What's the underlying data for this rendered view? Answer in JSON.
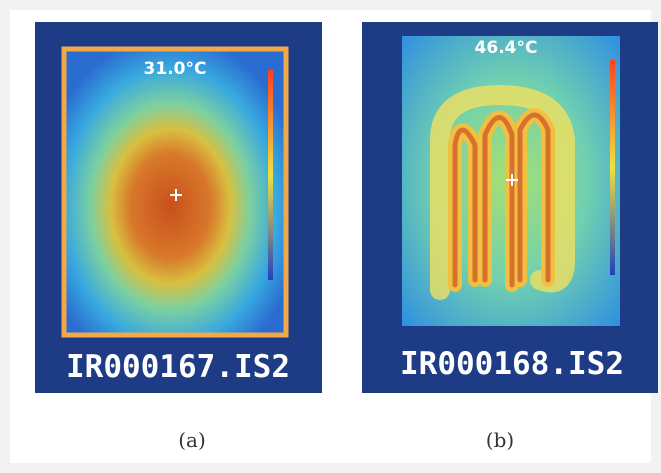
{
  "panels": [
    {
      "temperature": "31.0°C",
      "filename": "IR000167.IS2",
      "caption": "(a)"
    },
    {
      "temperature": "46.4°C",
      "filename": "IR000168.IS2",
      "caption": "(b)"
    }
  ]
}
